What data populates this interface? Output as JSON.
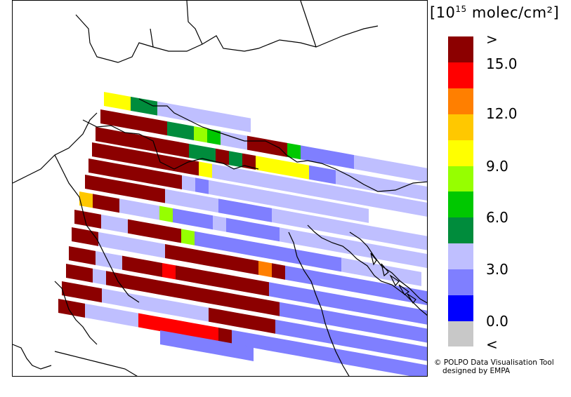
{
  "legend": {
    "title_prefix": "[10",
    "title_exp": "15",
    "title_suffix": " molec/cm²]",
    "colors": [
      "#c8c8c8",
      "#0000ff",
      "#7f7fff",
      "#bfbfff",
      "#008c3c",
      "#00c800",
      "#96ff00",
      "#ffff00",
      "#ffc800",
      "#ff7f00",
      "#ff0000",
      "#8c0000"
    ],
    "labels": [
      ">",
      "15.0",
      "12.0",
      "9.0",
      "6.0",
      "3.0",
      "0.0",
      "<"
    ]
  },
  "credit": {
    "line1": "© POLPO Data Visualisation Tool",
    "line2": "designed by EMPA"
  },
  "swaths": [
    "77BBWWWWWWW",
    "CCCCCBB65WWCCC5UUUUWWWWWWWWWWW",
    "CCCCCCCBBCBC7777UUWWWWWWWW",
    "CCCCCCCC7WWWWWWWWWWWWWWWWW",
    "CCCCCCCWUWWWWWWWWWWWW",
    "CCCCCCWWWWUUUUWWWWWWWWWWWWWWW",
    "9CCWWW6UUUWUUUUWWWWWWWWWWWW",
    "CCWWCCCC6UUUUUUUUUUUWWWWWW",
    "CCWWWWWCCCCCCC8CUUUUUUUUUUUUU",
    "CCWWCCCACCCCCCCUUUUUUUUUUUUUUUU",
    "CCWCCCCCCCCCCCCCUUUUUUUUUUUUUUU",
    "CCCWWWWWWWWCCCCCUUUUUUUUUUUUUUU",
    "CCWWWWAAAAAACUUUUUUUUUUUUUUU",
    "UUUUUUU"
  ]
}
